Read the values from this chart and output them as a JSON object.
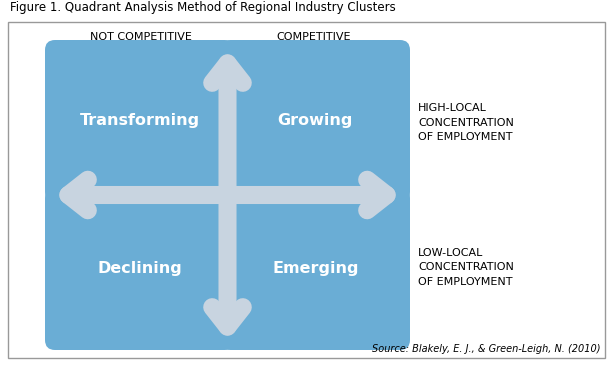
{
  "title": "Figure 1. Quadrant Analysis Method of Regional Industry Clusters",
  "source": "Source: Blakely, E. J., & Green-Leigh, N. (2010)",
  "box_color": "#6aadd5",
  "arrow_color": "#c8d4e0",
  "bg_color": "#ffffff",
  "quadrant_labels": [
    "Transforming",
    "Growing",
    "Declining",
    "Emerging"
  ],
  "top_labels": [
    "NOT COMPETITIVE",
    "COMPETITIVE"
  ],
  "right_label_top": "HIGH-LOCAL\nCONCENTRATION\nOF EMPLOYMENT",
  "right_label_bottom": "LOW-LOCAL\nCONCENTRATION\nOF EMPLOYMENT",
  "fig_width": 6.13,
  "fig_height": 3.7,
  "dpi": 100
}
